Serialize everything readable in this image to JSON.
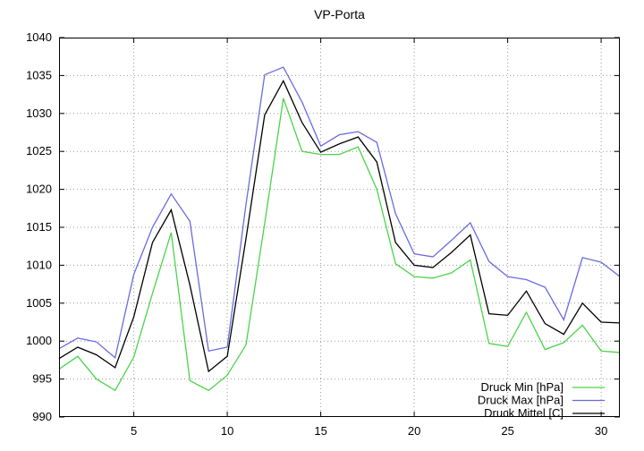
{
  "title": "VP-Porta",
  "chart_data": {
    "type": "line",
    "title": "VP-Porta",
    "xlabel": "",
    "ylabel": "",
    "xlim": [
      1,
      31
    ],
    "ylim": [
      990,
      1040
    ],
    "x_ticks": [
      5,
      10,
      15,
      20,
      25,
      30
    ],
    "y_ticks": [
      990,
      995,
      1000,
      1005,
      1010,
      1015,
      1020,
      1025,
      1030,
      1035,
      1040
    ],
    "grid": "dotted",
    "legend_position": "bottom-right",
    "x": [
      1,
      2,
      3,
      4,
      5,
      6,
      7,
      8,
      9,
      10,
      11,
      12,
      13,
      14,
      15,
      16,
      17,
      18,
      19,
      20,
      21,
      22,
      23,
      24,
      25,
      26,
      27,
      28,
      29,
      30,
      31
    ],
    "series": [
      {
        "name": "Druck Min [hPa]",
        "color": "#4ad44a",
        "values": [
          996.3,
          998.0,
          995.0,
          993.5,
          997.9,
          1006.3,
          1014.3,
          994.8,
          993.5,
          995.5,
          999.5,
          1015.5,
          1032.0,
          1025.0,
          1024.6,
          1024.6,
          1025.6,
          1020.0,
          1010.2,
          1008.5,
          1008.3,
          1009.0,
          1010.7,
          999.7,
          999.3,
          1003.8,
          998.9,
          999.8,
          1002.1,
          998.7,
          998.5
        ]
      },
      {
        "name": "Druck Max [hPa]",
        "color": "#6b6be0",
        "values": [
          999.0,
          1000.4,
          999.9,
          997.8,
          1008.8,
          1015.0,
          1019.4,
          1015.8,
          998.7,
          999.2,
          1018.0,
          1035.1,
          1036.1,
          1031.5,
          1025.7,
          1027.2,
          1027.6,
          1026.2,
          1016.8,
          1011.5,
          1011.1,
          1013.3,
          1015.6,
          1010.5,
          1008.5,
          1008.1,
          1007.1,
          1002.8,
          1011.0,
          1010.4,
          1008.5
        ]
      },
      {
        "name": "Druck Mittel [C]",
        "color": "#000000",
        "values": [
          997.7,
          999.2,
          998.2,
          996.5,
          1003.2,
          1013.0,
          1017.3,
          1007.4,
          996.0,
          998.0,
          1013.5,
          1029.8,
          1034.3,
          1028.8,
          1024.9,
          1026.0,
          1026.9,
          1023.6,
          1013.0,
          1010.0,
          1009.7,
          1011.7,
          1014.0,
          1003.6,
          1003.4,
          1006.6,
          1002.3,
          1000.9,
          1005.0,
          1002.5,
          1002.4
        ]
      }
    ],
    "colors": {
      "grid": "#999999",
      "border": "#000000",
      "background": "#ffffff"
    }
  }
}
